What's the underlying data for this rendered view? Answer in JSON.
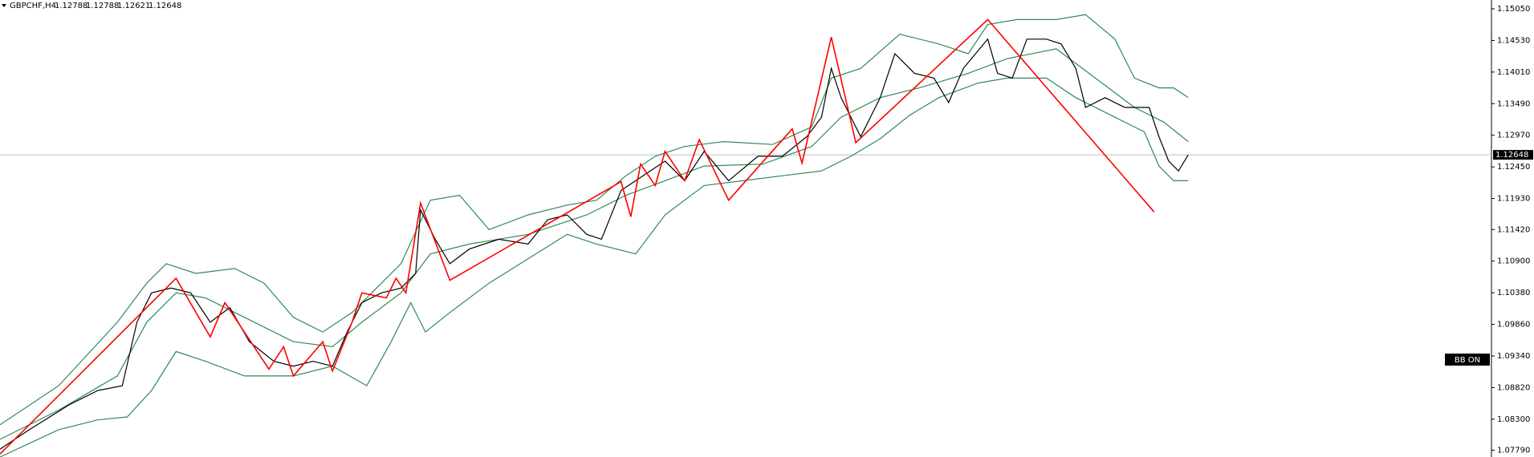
{
  "chart_data": {
    "type": "line",
    "title": "GBPCHF,H4",
    "ohlc": [
      1.12788,
      1.12788,
      1.12621,
      1.12648
    ],
    "last_price": 1.12648,
    "button": "BB ON",
    "xlim": [
      0,
      305
    ],
    "ylim": [
      1.07678,
      1.15195
    ],
    "yticks": [
      {
        "value": 1.1505,
        "label": "1.15050"
      },
      {
        "value": 1.1453,
        "label": "1.14530"
      },
      {
        "value": 1.1401,
        "label": "1.14010"
      },
      {
        "value": 1.1349,
        "label": "1.13490"
      },
      {
        "value": 1.1297,
        "label": "1.12970"
      },
      {
        "value": 1.1245,
        "label": "1.12450"
      },
      {
        "value": 1.1193,
        "label": "1.11930"
      },
      {
        "value": 1.1142,
        "label": "1.11420"
      },
      {
        "value": 1.109,
        "label": "1.10900"
      },
      {
        "value": 1.1038,
        "label": "1.10380"
      },
      {
        "value": 1.0986,
        "label": "1.09860"
      },
      {
        "value": 1.0934,
        "label": "1.09340"
      },
      {
        "value": 1.0882,
        "label": "1.08820"
      },
      {
        "value": 1.083,
        "label": "1.08300"
      },
      {
        "value": 1.0779,
        "label": "1.07790"
      }
    ],
    "series": [
      {
        "color": "#2e8b57",
        "x": [
          0,
          12,
          24,
          30,
          34,
          40,
          48,
          54,
          60,
          66,
          72,
          76,
          82,
          88,
          94,
          100,
          108,
          116,
          122,
          128,
          134,
          140,
          148,
          158,
          166,
          170,
          176,
          184,
          192,
          198,
          202,
          208,
          216,
          222,
          228,
          232,
          237,
          240,
          243
        ],
        "values": [
          1.08208,
          1.08851,
          1.09895,
          1.10537,
          1.10858,
          1.10698,
          1.10778,
          1.10537,
          1.09975,
          1.09734,
          1.10055,
          1.10377,
          1.10858,
          1.11902,
          1.11983,
          1.1142,
          1.11661,
          1.11822,
          1.11902,
          1.12304,
          1.12625,
          1.12786,
          1.12866,
          1.12818,
          1.13107,
          1.1391,
          1.1407,
          1.14632,
          1.14472,
          1.14311,
          1.14793,
          1.14873,
          1.14873,
          1.14954,
          1.14552,
          1.1391,
          1.13749,
          1.13749,
          1.13589
        ]
      },
      {
        "color": "#2e8b57",
        "x": [
          0,
          12,
          24,
          30,
          36,
          42,
          50,
          60,
          68,
          74,
          82,
          88,
          96,
          108,
          120,
          128,
          136,
          144,
          156,
          166,
          172,
          180,
          188,
          198,
          206,
          216,
          224,
          232,
          238,
          243
        ],
        "values": [
          1.07968,
          1.08449,
          1.09011,
          1.09895,
          1.10377,
          1.10296,
          1.09975,
          1.09574,
          1.09493,
          1.09895,
          1.10377,
          1.11019,
          1.1118,
          1.1134,
          1.11661,
          1.11983,
          1.12223,
          1.12464,
          1.12496,
          1.12786,
          1.13267,
          1.13589,
          1.13749,
          1.1399,
          1.14231,
          1.14392,
          1.1391,
          1.13428,
          1.13187,
          1.12866
        ]
      },
      {
        "color": "#2e8b57",
        "x": [
          0,
          12,
          20,
          26,
          31,
          36,
          42,
          50,
          60,
          68,
          75,
          80,
          84,
          87,
          92,
          100,
          108,
          116,
          122,
          130,
          136,
          144,
          152,
          160,
          168,
          174,
          180,
          186,
          192,
          200,
          206,
          214,
          220,
          228,
          234,
          237,
          240,
          243
        ],
        "values": [
          1.07678,
          1.08128,
          1.08289,
          1.08337,
          1.08771,
          1.09413,
          1.09252,
          1.09011,
          1.09011,
          1.09172,
          1.08851,
          1.09574,
          1.10216,
          1.09734,
          1.10055,
          1.10537,
          1.10939,
          1.1134,
          1.1118,
          1.11019,
          1.11661,
          1.12143,
          1.12223,
          1.12304,
          1.12384,
          1.12625,
          1.12914,
          1.13299,
          1.13589,
          1.13829,
          1.1391,
          1.1391,
          1.13589,
          1.13267,
          1.13026,
          1.12464,
          1.12223,
          1.12223
        ]
      },
      {
        "color": "#000000",
        "x": [
          0,
          6,
          14,
          20,
          25,
          28,
          31,
          35,
          39,
          43,
          47,
          51,
          56,
          60,
          64,
          68,
          71,
          74,
          78,
          82,
          85,
          86,
          89,
          92,
          96,
          102,
          108,
          112,
          116,
          120,
          123,
          127,
          130,
          136,
          140,
          144,
          149,
          155,
          160,
          165,
          168,
          170,
          172,
          176,
          180,
          183,
          187,
          191,
          194,
          197,
          202,
          204,
          207,
          210,
          214,
          217,
          220,
          222,
          226,
          230,
          235,
          237,
          239,
          241,
          243
        ],
        "values": [
          1.07807,
          1.08128,
          1.0853,
          1.08771,
          1.08851,
          1.09895,
          1.10377,
          1.10457,
          1.10377,
          1.09895,
          1.10136,
          1.09574,
          1.09252,
          1.09172,
          1.09252,
          1.09172,
          1.09734,
          1.10216,
          1.10377,
          1.10457,
          1.10698,
          1.11742,
          1.1126,
          1.10858,
          1.11099,
          1.1126,
          1.1118,
          1.11581,
          1.11661,
          1.1134,
          1.1126,
          1.12063,
          1.12223,
          1.12545,
          1.12223,
          1.12705,
          1.12223,
          1.12625,
          1.12625,
          1.12946,
          1.13267,
          1.1407,
          1.13589,
          1.12946,
          1.13589,
          1.14311,
          1.1399,
          1.1391,
          1.13508,
          1.1407,
          1.14552,
          1.1399,
          1.1391,
          1.14552,
          1.14552,
          1.14472,
          1.1407,
          1.13428,
          1.13589,
          1.13428,
          1.13428,
          1.12946,
          1.12545,
          1.12384,
          1.12648
        ]
      },
      {
        "color": "#ff0000",
        "x": [
          0,
          36,
          43,
          46,
          55,
          58,
          60,
          66,
          68,
          72,
          74,
          79,
          81,
          83,
          86,
          92,
          127,
          129,
          131,
          134,
          136,
          140,
          143,
          149,
          162,
          164,
          170,
          175,
          202,
          236
        ],
        "values": [
          1.07727,
          1.10617,
          1.09654,
          1.10216,
          1.09124,
          1.09493,
          1.09011,
          1.09574,
          1.09092,
          1.09895,
          1.10377,
          1.10296,
          1.10617,
          1.10377,
          1.11854,
          1.10585,
          1.12207,
          1.11629,
          1.12496,
          1.12143,
          1.12705,
          1.12223,
          1.12898,
          1.11902,
          1.13075,
          1.12513,
          1.14584,
          1.1285,
          1.14873,
          1.1171
        ]
      }
    ]
  }
}
